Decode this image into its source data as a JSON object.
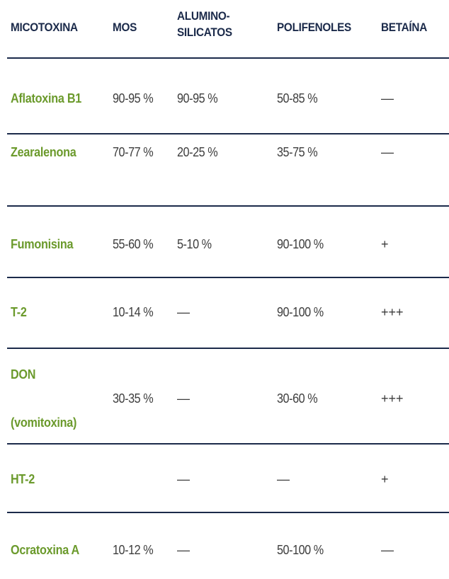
{
  "headers": {
    "micotoxina": "MICOTOXINA",
    "mos": "MOS",
    "alumino_line1": "ALUMINO-",
    "alumino_line2": "SILICATOS",
    "polifenoles": "POLIFENOLES",
    "betaina": "BETAÍNA"
  },
  "rows": [
    {
      "name": "Aflatoxina B1",
      "mos": "90-95 %",
      "alumino": "90-95 %",
      "polifenoles": "50-85 %",
      "betaina": "—"
    },
    {
      "name": "Zearalenona",
      "mos": "70-77 %",
      "alumino": "20-25 %",
      "polifenoles": "35-75 %",
      "betaina": "—"
    },
    {
      "name": "Fumonisina",
      "mos": "55-60 %",
      "alumino": "5-10 %",
      "polifenoles": "90-100 %",
      "betaina": "+"
    },
    {
      "name": "T-2",
      "mos": "10-14 %",
      "alumino": "—",
      "polifenoles": "90-100 %",
      "betaina": "+++"
    },
    {
      "name_line1": "DON",
      "name_line2": "(vomitoxina)",
      "mos": "30-35 %",
      "alumino": "—",
      "polifenoles": "30-60 %",
      "betaina": "+++"
    },
    {
      "name": "HT-2",
      "mos": "",
      "alumino": "—",
      "polifenoles": "—",
      "betaina": "+"
    },
    {
      "name": "Ocratoxina A",
      "mos": "10-12 %",
      "alumino": "—",
      "polifenoles": "50-100 %",
      "betaina": "—"
    }
  ]
}
